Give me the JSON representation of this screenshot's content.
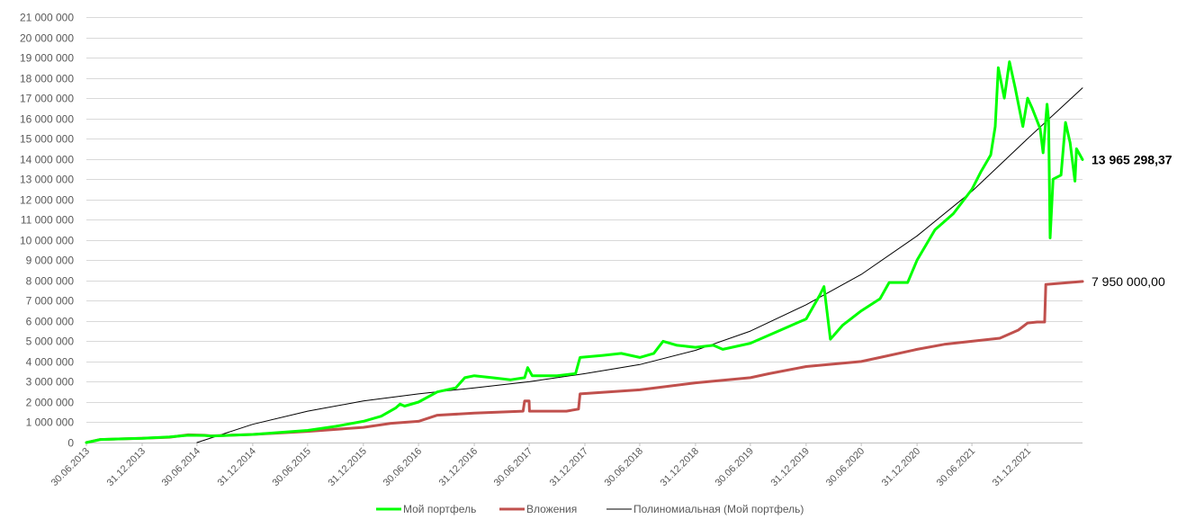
{
  "chart_data": {
    "type": "line",
    "x_range": [
      "30.06.2013",
      "30.06.2022"
    ],
    "ylim": [
      0,
      21000000
    ],
    "y_ticks": [
      {
        "value": 0,
        "label": "0"
      },
      {
        "value": 1000000,
        "label": "1 000 000"
      },
      {
        "value": 2000000,
        "label": "2 000 000"
      },
      {
        "value": 3000000,
        "label": "3 000 000"
      },
      {
        "value": 4000000,
        "label": "4 000 000"
      },
      {
        "value": 5000000,
        "label": "5 000 000"
      },
      {
        "value": 6000000,
        "label": "6 000 000"
      },
      {
        "value": 7000000,
        "label": "7 000 000"
      },
      {
        "value": 8000000,
        "label": "8 000 000"
      },
      {
        "value": 9000000,
        "label": "9 000 000"
      },
      {
        "value": 10000000,
        "label": "10 000 000"
      },
      {
        "value": 11000000,
        "label": "11 000 000"
      },
      {
        "value": 12000000,
        "label": "12 000 000"
      },
      {
        "value": 13000000,
        "label": "13 000 000"
      },
      {
        "value": 14000000,
        "label": "14 000 000"
      },
      {
        "value": 15000000,
        "label": "15 000 000"
      },
      {
        "value": 16000000,
        "label": "16 000 000"
      },
      {
        "value": 17000000,
        "label": "17 000 000"
      },
      {
        "value": 18000000,
        "label": "18 000 000"
      },
      {
        "value": 19000000,
        "label": "19 000 000"
      },
      {
        "value": 20000000,
        "label": "20 000 000"
      },
      {
        "value": 21000000,
        "label": "21 000 000"
      }
    ],
    "x_ticks": [
      "30.06.2013",
      "31.12.2013",
      "30.06.2014",
      "31.12.2014",
      "30.06.2015",
      "31.12.2015",
      "30.06.2016",
      "31.12.2016",
      "30.06.2017",
      "31.12.2017",
      "30.06.2018",
      "31.12.2018",
      "30.06.2019",
      "31.12.2019",
      "30.06.2020",
      "31.12.2020",
      "30.06.2021",
      "31.12.2021"
    ],
    "grid": true,
    "legend_position": "bottom",
    "series": [
      {
        "name": "Мой портфель",
        "color": "#00ff00",
        "points": [
          [
            "2013-06-30",
            0
          ],
          [
            "2013-08-15",
            150000
          ],
          [
            "2013-12-31",
            210000
          ],
          [
            "2014-03-31",
            280000
          ],
          [
            "2014-06-01",
            360000
          ],
          [
            "2014-07-25",
            350000
          ],
          [
            "2014-08-15",
            320000
          ],
          [
            "2014-12-31",
            400000
          ],
          [
            "2015-03-31",
            500000
          ],
          [
            "2015-06-30",
            600000
          ],
          [
            "2015-09-30",
            800000
          ],
          [
            "2015-12-31",
            1050000
          ],
          [
            "2016-02-28",
            1300000
          ],
          [
            "2016-04-15",
            1700000
          ],
          [
            "2016-04-30",
            1900000
          ],
          [
            "2016-05-15",
            1800000
          ],
          [
            "2016-06-30",
            2000000
          ],
          [
            "2016-08-31",
            2500000
          ],
          [
            "2016-10-31",
            2700000
          ],
          [
            "2016-11-30",
            3200000
          ],
          [
            "2016-12-31",
            3300000
          ],
          [
            "2017-02-28",
            3200000
          ],
          [
            "2017-04-30",
            3100000
          ],
          [
            "2017-06-15",
            3200000
          ],
          [
            "2017-06-25",
            3700000
          ],
          [
            "2017-07-10",
            3300000
          ],
          [
            "2017-09-30",
            3300000
          ],
          [
            "2017-11-30",
            3400000
          ],
          [
            "2017-12-15",
            4200000
          ],
          [
            "2018-02-28",
            4300000
          ],
          [
            "2018-04-30",
            4400000
          ],
          [
            "2018-06-30",
            4200000
          ],
          [
            "2018-08-15",
            4400000
          ],
          [
            "2018-09-15",
            5000000
          ],
          [
            "2018-10-31",
            4800000
          ],
          [
            "2018-12-31",
            4700000
          ],
          [
            "2019-02-28",
            4800000
          ],
          [
            "2019-03-31",
            4600000
          ],
          [
            "2019-06-30",
            4900000
          ],
          [
            "2019-09-30",
            5500000
          ],
          [
            "2019-12-31",
            6100000
          ],
          [
            "2020-02-15",
            7300000
          ],
          [
            "2020-02-28",
            7700000
          ],
          [
            "2020-03-20",
            5100000
          ],
          [
            "2020-04-30",
            5800000
          ],
          [
            "2020-06-30",
            6500000
          ],
          [
            "2020-08-31",
            7100000
          ],
          [
            "2020-09-30",
            7900000
          ],
          [
            "2020-11-30",
            7900000
          ],
          [
            "2020-12-31",
            9000000
          ],
          [
            "2021-02-28",
            10500000
          ],
          [
            "2021-04-30",
            11300000
          ],
          [
            "2021-06-30",
            12500000
          ],
          [
            "2021-07-31",
            13400000
          ],
          [
            "2021-08-31",
            14200000
          ],
          [
            "2021-09-15",
            15600000
          ],
          [
            "2021-09-25",
            18500000
          ],
          [
            "2021-10-15",
            17000000
          ],
          [
            "2021-11-01",
            18800000
          ],
          [
            "2021-11-20",
            17500000
          ],
          [
            "2021-12-15",
            15600000
          ],
          [
            "2021-12-31",
            17000000
          ],
          [
            "2022-01-15",
            16500000
          ],
          [
            "2022-02-10",
            15500000
          ],
          [
            "2022-02-20",
            14300000
          ],
          [
            "2022-03-05",
            16700000
          ],
          [
            "2022-03-10",
            15900000
          ],
          [
            "2022-03-15",
            10100000
          ],
          [
            "2022-03-25",
            13000000
          ],
          [
            "2022-04-20",
            13200000
          ],
          [
            "2022-05-05",
            15800000
          ],
          [
            "2022-05-20",
            14800000
          ],
          [
            "2022-06-05",
            12900000
          ],
          [
            "2022-06-10",
            14500000
          ],
          [
            "2022-06-30",
            13965298
          ]
        ]
      },
      {
        "name": "Вложения",
        "color": "#c0504d",
        "points": [
          [
            "2013-06-30",
            0
          ],
          [
            "2013-08-15",
            150000
          ],
          [
            "2013-12-31",
            210000
          ],
          [
            "2014-03-31",
            260000
          ],
          [
            "2014-06-01",
            380000
          ],
          [
            "2014-07-25",
            360000
          ],
          [
            "2014-08-15",
            330000
          ],
          [
            "2014-12-31",
            400000
          ],
          [
            "2015-06-30",
            550000
          ],
          [
            "2015-12-31",
            750000
          ],
          [
            "2016-03-31",
            950000
          ],
          [
            "2016-06-30",
            1050000
          ],
          [
            "2016-08-31",
            1350000
          ],
          [
            "2016-12-31",
            1450000
          ],
          [
            "2017-06-10",
            1550000
          ],
          [
            "2017-06-15",
            2050000
          ],
          [
            "2017-06-30",
            2050000
          ],
          [
            "2017-07-01",
            1550000
          ],
          [
            "2017-10-31",
            1550000
          ],
          [
            "2017-12-10",
            1650000
          ],
          [
            "2017-12-15",
            2400000
          ],
          [
            "2018-06-30",
            2600000
          ],
          [
            "2018-12-31",
            2950000
          ],
          [
            "2019-06-30",
            3200000
          ],
          [
            "2019-08-31",
            3400000
          ],
          [
            "2019-12-31",
            3750000
          ],
          [
            "2020-06-30",
            4000000
          ],
          [
            "2020-08-31",
            4200000
          ],
          [
            "2020-12-31",
            4600000
          ],
          [
            "2021-03-31",
            4850000
          ],
          [
            "2021-06-30",
            5000000
          ],
          [
            "2021-09-30",
            5150000
          ],
          [
            "2021-11-30",
            5550000
          ],
          [
            "2021-12-31",
            5900000
          ],
          [
            "2022-01-31",
            5950000
          ],
          [
            "2022-02-25",
            5950000
          ],
          [
            "2022-03-01",
            7800000
          ],
          [
            "2022-06-30",
            7950000
          ]
        ]
      },
      {
        "name": "Полиномиальная (Мой портфель)",
        "color": "#000000",
        "points": [
          [
            "2014-06-30",
            0
          ],
          [
            "2014-12-31",
            900000
          ],
          [
            "2015-06-30",
            1550000
          ],
          [
            "2015-12-31",
            2050000
          ],
          [
            "2016-06-30",
            2400000
          ],
          [
            "2016-12-31",
            2700000
          ],
          [
            "2017-06-30",
            3000000
          ],
          [
            "2017-12-31",
            3400000
          ],
          [
            "2018-06-30",
            3850000
          ],
          [
            "2018-12-31",
            4550000
          ],
          [
            "2019-06-30",
            5500000
          ],
          [
            "2019-12-31",
            6800000
          ],
          [
            "2020-06-30",
            8300000
          ],
          [
            "2020-12-31",
            10200000
          ],
          [
            "2021-06-30",
            12400000
          ],
          [
            "2021-12-31",
            15000000
          ],
          [
            "2022-06-30",
            17500000
          ]
        ]
      }
    ],
    "annotations": [
      {
        "series": "Мой портфель",
        "text": "13 965 298,37",
        "bold": true
      },
      {
        "series": "Вложения",
        "text": "7 950 000,00",
        "bold": false
      }
    ]
  }
}
